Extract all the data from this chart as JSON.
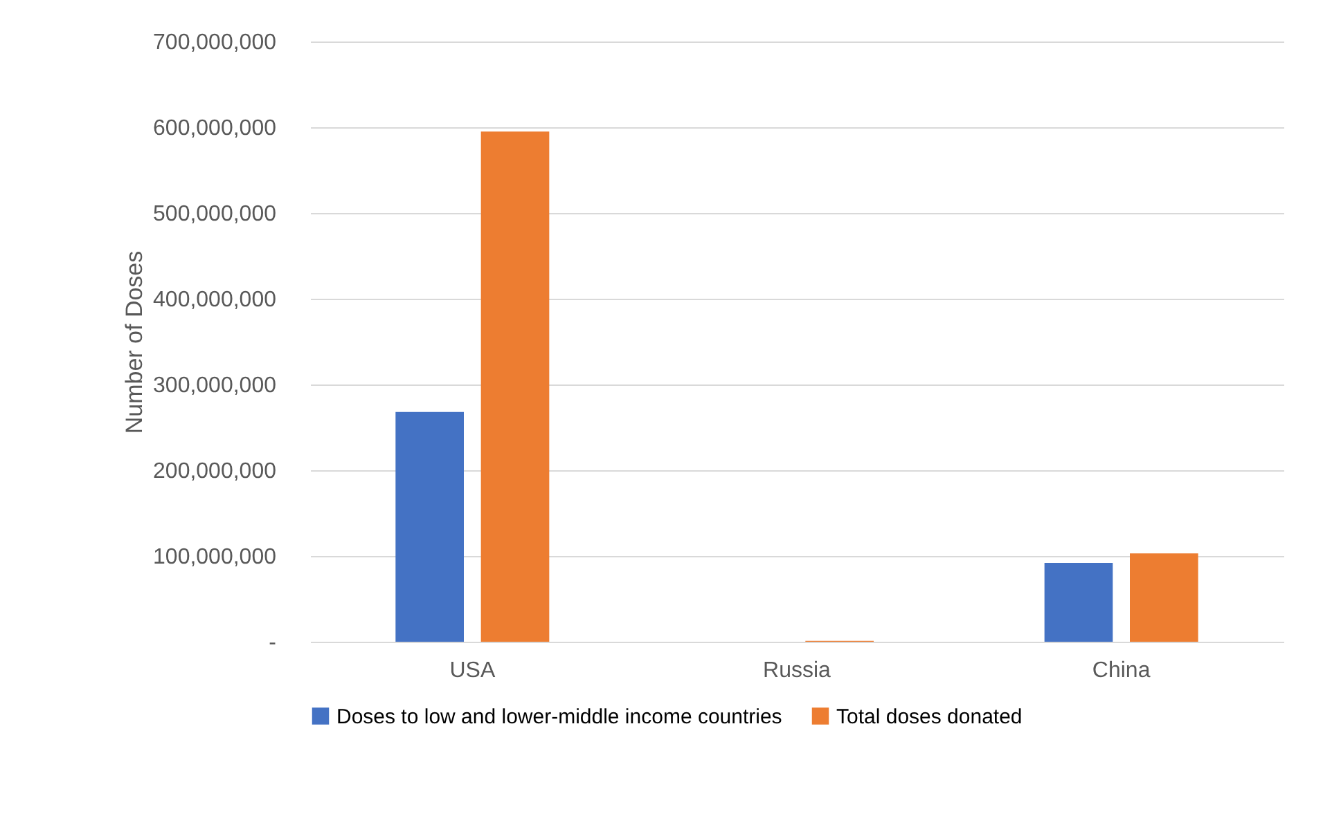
{
  "chart_data": {
    "type": "bar",
    "ylabel": "Number of Doses",
    "categories": [
      "USA",
      "Russia",
      "China"
    ],
    "series": [
      {
        "name": "Doses to low and lower-middle income countries",
        "color": "#4472c4",
        "values": [
          268000000,
          0,
          92000000
        ]
      },
      {
        "name": "Total doses donated",
        "color": "#ed7d31",
        "values": [
          595000000,
          1000000,
          103000000
        ]
      }
    ],
    "ylim": [
      0,
      700000000
    ],
    "yticks": [
      {
        "value": 0,
        "label": "-"
      },
      {
        "value": 100000000,
        "label": "100,000,000"
      },
      {
        "value": 200000000,
        "label": "200,000,000"
      },
      {
        "value": 300000000,
        "label": "300,000,000"
      },
      {
        "value": 400000000,
        "label": "400,000,000"
      },
      {
        "value": 500000000,
        "label": "500,000,000"
      },
      {
        "value": 600000000,
        "label": "600,000,000"
      },
      {
        "value": 700000000,
        "label": "700,000,000"
      }
    ],
    "grid": "y",
    "legend": "bottom"
  }
}
